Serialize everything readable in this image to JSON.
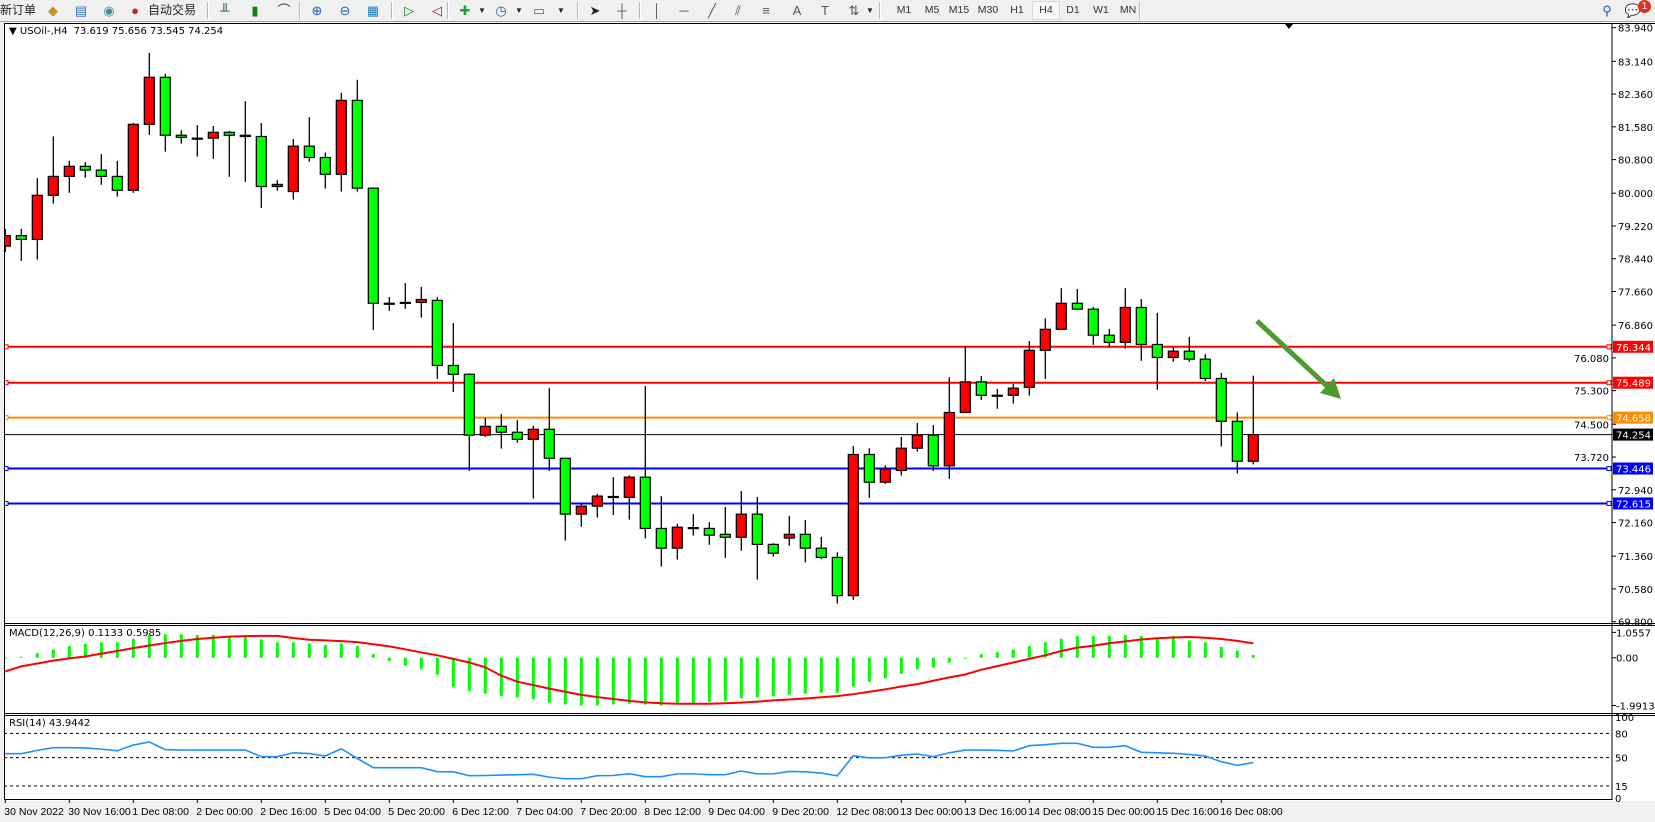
{
  "toolbar": {
    "new_order_label": "新订单",
    "auto_trading_label": "自动交易",
    "timeframes": [
      "M1",
      "M5",
      "M15",
      "M30",
      "H1",
      "H4",
      "D1",
      "W1",
      "MN"
    ],
    "active_timeframe": "H4",
    "notification_count": "1",
    "icons": [
      "new-order",
      "metaeditor",
      "market-watch",
      "signals",
      "auto-trading",
      "bar-chart",
      "candlesticks",
      "line-chart",
      "zoom-in",
      "zoom-out",
      "tile-windows",
      "auto-scroll",
      "chart-shift",
      "indicators",
      "periods-clock",
      "templates",
      "cursor",
      "crosshair",
      "vertical-line",
      "horizontal-line",
      "trendline",
      "equidistant-channel",
      "fibonacci",
      "text",
      "text-label",
      "arrows",
      "search",
      "chat"
    ]
  },
  "main_header": {
    "symbol": "USOil-,H4",
    "ohlc": "73.619 75.656 73.545 74.254"
  },
  "macd_header": "MACD(12,26,9) 0.1133 0.5985",
  "rsi_header": "RSI(14) 43.9442",
  "colors": {
    "bull": "#ff0000",
    "bear": "#00ff00",
    "macd_hist": "#00ff00",
    "macd_signal": "#ff0000",
    "rsi_line": "#1e90ff",
    "arrow": "#4f9a2f"
  },
  "chart_data": {
    "type": "candlestick",
    "symbol": "USOil-",
    "timeframe": "H4",
    "price_axis_labels": [
      "83.940",
      "83.140",
      "82.360",
      "81.580",
      "80.800",
      "80.000",
      "79.220",
      "78.440",
      "77.660",
      "76.860",
      "76.080",
      "75.300",
      "74.500",
      "73.720",
      "72.940",
      "72.160",
      "71.360",
      "70.580",
      "69.800"
    ],
    "price_range": [
      69.8,
      83.94
    ],
    "time_axis_labels": [
      "30 Nov 2022",
      "30 Nov 16:00",
      "1 Dec 08:00",
      "2 Dec 00:00",
      "2 Dec 16:00",
      "5 Dec 04:00",
      "5 Dec 20:00",
      "6 Dec 12:00",
      "7 Dec 04:00",
      "7 Dec 20:00",
      "8 Dec 12:00",
      "9 Dec 04:00",
      "9 Dec 20:00",
      "12 Dec 08:00",
      "13 Dec 00:00",
      "13 Dec 16:00",
      "14 Dec 08:00",
      "15 Dec 00:00",
      "15 Dec 16:00",
      "16 Dec 08:00"
    ],
    "ohlc": [
      [
        78.74,
        79.15,
        78.6,
        78.99
      ],
      [
        78.99,
        79.15,
        78.39,
        78.9
      ],
      [
        78.9,
        80.36,
        78.42,
        79.95
      ],
      [
        79.95,
        81.35,
        79.75,
        80.4
      ],
      [
        80.4,
        80.77,
        80.01,
        80.64
      ],
      [
        80.64,
        80.74,
        80.37,
        80.55
      ],
      [
        80.55,
        80.93,
        80.2,
        80.4
      ],
      [
        80.4,
        80.77,
        79.92,
        80.07
      ],
      [
        80.07,
        81.67,
        80.01,
        81.64
      ],
      [
        81.64,
        83.34,
        81.39,
        82.76
      ],
      [
        82.76,
        82.84,
        80.99,
        81.38
      ],
      [
        81.38,
        81.5,
        81.18,
        81.33
      ],
      [
        81.31,
        81.62,
        80.87,
        81.31
      ],
      [
        81.31,
        81.6,
        80.82,
        81.45
      ],
      [
        81.45,
        81.48,
        80.39,
        81.38
      ],
      [
        81.38,
        82.19,
        80.27,
        81.35
      ],
      [
        81.35,
        81.67,
        79.65,
        80.16
      ],
      [
        80.16,
        80.31,
        80.06,
        80.21
      ],
      [
        80.04,
        81.29,
        79.85,
        81.12
      ],
      [
        81.12,
        81.81,
        80.75,
        80.85
      ],
      [
        80.85,
        80.97,
        80.11,
        80.45
      ],
      [
        80.45,
        82.39,
        80.04,
        82.21
      ],
      [
        82.21,
        82.7,
        80.04,
        80.12
      ],
      [
        80.12,
        80.14,
        76.74,
        77.38
      ],
      [
        77.38,
        77.53,
        77.2,
        77.38
      ],
      [
        77.4,
        77.86,
        77.25,
        77.38
      ],
      [
        77.4,
        77.77,
        77.04,
        77.47
      ],
      [
        77.45,
        77.53,
        75.58,
        75.9
      ],
      [
        75.9,
        76.91,
        75.27,
        75.69
      ],
      [
        75.69,
        75.71,
        73.39,
        74.24
      ],
      [
        74.24,
        74.65,
        74.2,
        74.45
      ],
      [
        74.45,
        74.74,
        73.92,
        74.31
      ],
      [
        74.31,
        74.6,
        74.06,
        74.14
      ],
      [
        74.14,
        74.46,
        72.73,
        74.38
      ],
      [
        74.38,
        75.36,
        73.39,
        73.69
      ],
      [
        73.69,
        73.69,
        71.73,
        72.36
      ],
      [
        72.36,
        72.6,
        72.06,
        72.55
      ],
      [
        72.55,
        72.84,
        72.28,
        72.79
      ],
      [
        72.78,
        73.24,
        72.34,
        72.78
      ],
      [
        72.76,
        73.28,
        72.23,
        73.24
      ],
      [
        73.24,
        75.41,
        71.78,
        72.02
      ],
      [
        72.02,
        72.79,
        71.11,
        71.55
      ],
      [
        71.55,
        72.13,
        71.28,
        72.05
      ],
      [
        72.04,
        72.36,
        71.85,
        72.04
      ],
      [
        72.02,
        72.17,
        71.63,
        71.86
      ],
      [
        71.88,
        72.53,
        71.32,
        71.81
      ],
      [
        71.81,
        72.91,
        71.49,
        72.36
      ],
      [
        72.36,
        72.77,
        70.8,
        71.64
      ],
      [
        71.64,
        71.67,
        71.35,
        71.43
      ],
      [
        71.79,
        72.32,
        71.61,
        71.88
      ],
      [
        71.88,
        72.22,
        71.21,
        71.55
      ],
      [
        71.55,
        71.82,
        71.29,
        71.33
      ],
      [
        71.33,
        71.45,
        70.23,
        70.42
      ],
      [
        70.42,
        73.98,
        70.32,
        73.78
      ],
      [
        73.78,
        73.93,
        72.75,
        73.12
      ],
      [
        73.12,
        73.52,
        73.08,
        73.43
      ],
      [
        73.4,
        74.2,
        73.28,
        73.93
      ],
      [
        73.93,
        74.53,
        73.85,
        74.24
      ],
      [
        74.24,
        74.48,
        73.39,
        73.51
      ],
      [
        73.51,
        75.62,
        73.2,
        74.78
      ],
      [
        74.78,
        76.35,
        74.78,
        75.51
      ],
      [
        75.51,
        75.65,
        75.08,
        75.19
      ],
      [
        75.19,
        75.34,
        74.87,
        75.19
      ],
      [
        75.19,
        75.46,
        74.99,
        75.36
      ],
      [
        75.38,
        76.48,
        75.18,
        76.26
      ],
      [
        76.26,
        77.02,
        75.58,
        76.76
      ],
      [
        76.76,
        77.74,
        76.76,
        77.38
      ],
      [
        77.38,
        77.72,
        77.24,
        77.24
      ],
      [
        77.24,
        77.29,
        76.39,
        76.62
      ],
      [
        76.62,
        76.77,
        76.32,
        76.45
      ],
      [
        76.45,
        77.74,
        76.3,
        77.28
      ],
      [
        77.28,
        77.48,
        76.01,
        76.4
      ],
      [
        76.4,
        77.15,
        75.32,
        76.09
      ],
      [
        76.09,
        76.33,
        75.99,
        76.24
      ],
      [
        76.24,
        76.58,
        75.99,
        76.05
      ],
      [
        76.05,
        76.17,
        75.53,
        75.59
      ],
      [
        75.59,
        75.72,
        73.97,
        74.57
      ],
      [
        74.57,
        74.78,
        73.33,
        73.62
      ],
      [
        73.619,
        75.656,
        73.545,
        74.254
      ]
    ],
    "levels": [
      {
        "price": 76.344,
        "label": "76.344",
        "color": "#ff0000"
      },
      {
        "price": 75.489,
        "label": "75.489",
        "color": "#ff0000"
      },
      {
        "price": 74.658,
        "label": "74.658",
        "color": "#ff8c00"
      },
      {
        "price": 74.254,
        "label": "74.254",
        "color": "#000000",
        "current": true
      },
      {
        "price": 73.446,
        "label": "73.446",
        "color": "#0000ff"
      },
      {
        "price": 72.615,
        "label": "72.615",
        "color": "#0000ff"
      }
    ],
    "annotation": {
      "type": "arrow",
      "direction": "down-right"
    },
    "macd": {
      "params": "12,26,9",
      "axis_labels": [
        "1.0557",
        "0.00",
        "-1.9913"
      ],
      "axis_values": [
        1.0557,
        0,
        -1.9913
      ],
      "histogram": [
        0.01,
        0.04,
        0.19,
        0.34,
        0.49,
        0.57,
        0.64,
        0.64,
        0.79,
        0.95,
        0.98,
        0.98,
        0.95,
        0.95,
        0.87,
        0.87,
        0.76,
        0.64,
        0.64,
        0.6,
        0.53,
        0.6,
        0.49,
        0.15,
        -0.14,
        -0.33,
        -0.48,
        -0.71,
        -1.21,
        -1.39,
        -1.5,
        -1.61,
        -1.65,
        -1.73,
        -1.88,
        -1.95,
        -1.99,
        -1.99,
        -1.95,
        -1.92,
        -1.95,
        -1.99,
        -1.92,
        -1.92,
        -1.84,
        -1.8,
        -1.69,
        -1.65,
        -1.61,
        -1.54,
        -1.5,
        -1.46,
        -1.46,
        -1.2,
        -1.01,
        -0.86,
        -0.67,
        -0.48,
        -0.4,
        -0.21,
        -0.03,
        0.15,
        0.23,
        0.34,
        0.49,
        0.64,
        0.79,
        0.91,
        0.91,
        0.91,
        0.95,
        0.91,
        0.79,
        0.91,
        0.72,
        0.64,
        0.45,
        0.3,
        0.1133
      ],
      "signal": [
        -0.57,
        -0.36,
        -0.24,
        -0.12,
        -0.03,
        0.05,
        0.17,
        0.28,
        0.4,
        0.51,
        0.61,
        0.7,
        0.78,
        0.83,
        0.88,
        0.9,
        0.91,
        0.91,
        0.82,
        0.75,
        0.72,
        0.69,
        0.65,
        0.56,
        0.47,
        0.35,
        0.22,
        0.1,
        -0.05,
        -0.2,
        -0.4,
        -0.75,
        -1.0,
        -1.14,
        -1.29,
        -1.42,
        -1.55,
        -1.64,
        -1.72,
        -1.8,
        -1.86,
        -1.9,
        -1.92,
        -1.92,
        -1.92,
        -1.9,
        -1.87,
        -1.83,
        -1.78,
        -1.74,
        -1.7,
        -1.65,
        -1.6,
        -1.52,
        -1.42,
        -1.32,
        -1.2,
        -1.1,
        -0.96,
        -0.82,
        -0.7,
        -0.5,
        -0.35,
        -0.2,
        -0.05,
        0.1,
        0.28,
        0.42,
        0.5,
        0.6,
        0.68,
        0.76,
        0.81,
        0.84,
        0.86,
        0.83,
        0.78,
        0.7,
        0.5985
      ]
    },
    "rsi": {
      "period": 14,
      "axis_labels": [
        "100",
        "80",
        "50",
        "15",
        "0"
      ],
      "axis_values": [
        100,
        80,
        50,
        15,
        0
      ],
      "levels": [
        80,
        50,
        15
      ],
      "values": [
        54.9,
        54.9,
        59,
        62.3,
        62.3,
        62,
        60.5,
        58.5,
        65.5,
        69.3,
        60,
        59.4,
        59.4,
        59.4,
        59.4,
        59.4,
        51.2,
        51.2,
        56,
        55,
        52,
        61,
        49,
        37.6,
        37.6,
        37.6,
        37.6,
        32.7,
        32.5,
        27.7,
        28,
        28.5,
        29,
        29.5,
        26,
        24,
        24,
        27.7,
        28,
        30.2,
        26.5,
        26.5,
        30,
        30,
        29,
        29,
        33.5,
        30,
        30,
        33,
        32.5,
        31,
        27.7,
        52.4,
        49.6,
        49.9,
        53,
        54.5,
        51.2,
        56,
        59.4,
        59.4,
        59,
        58.2,
        64.7,
        66,
        67.7,
        67.7,
        62.8,
        62.8,
        64.7,
        56.6,
        56,
        55.3,
        54,
        52,
        45,
        40.5,
        43.9442
      ]
    }
  }
}
